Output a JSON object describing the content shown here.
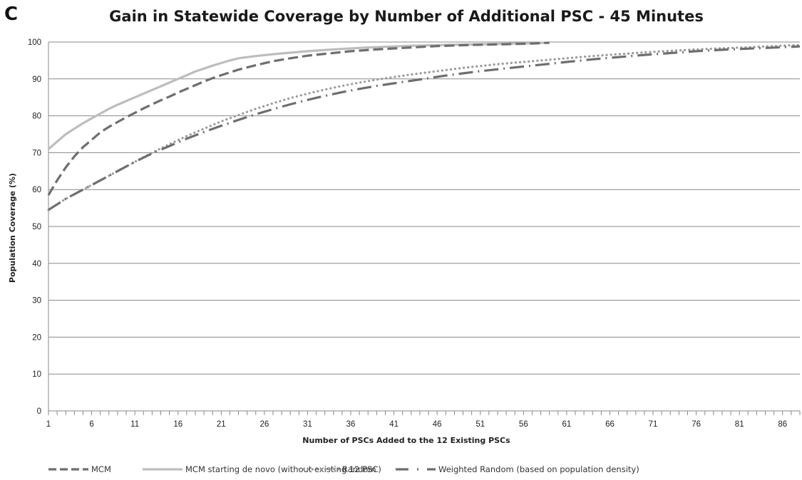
{
  "panel_label": "C",
  "chart_data": {
    "type": "line",
    "title": "Gain in Statewide Coverage by Number of Additional PSC - 45 Minutes",
    "xlabel": "Number of PSCs Added to the 12 Existing PSCs",
    "ylabel": "Population Coverage (%)",
    "xlim": [
      1,
      88
    ],
    "ylim": [
      0,
      100
    ],
    "x_ticks": [
      1,
      6,
      11,
      16,
      21,
      26,
      31,
      36,
      41,
      46,
      51,
      56,
      61,
      66,
      71,
      76,
      81,
      86
    ],
    "y_ticks": [
      0,
      10,
      20,
      30,
      40,
      50,
      60,
      70,
      80,
      90,
      100
    ],
    "grid": "horizontal",
    "legend_position": "bottom",
    "series": [
      {
        "name": "MCM",
        "color": "#6e6e6e",
        "style": "dashed",
        "points": [
          [
            1,
            58.5
          ],
          [
            2,
            62.5
          ],
          [
            3,
            66
          ],
          [
            4,
            69
          ],
          [
            5,
            71.5
          ],
          [
            6,
            73.5
          ],
          [
            7,
            75.5
          ],
          [
            8,
            77
          ],
          [
            9,
            78.3
          ],
          [
            10,
            79.6
          ],
          [
            11,
            80.8
          ],
          [
            12,
            82
          ],
          [
            13,
            83.1
          ],
          [
            14,
            84.2
          ],
          [
            15,
            85.2
          ],
          [
            16,
            86.3
          ],
          [
            17,
            87.3
          ],
          [
            18,
            88.3
          ],
          [
            19,
            89.3
          ],
          [
            20,
            90.2
          ],
          [
            21,
            91
          ],
          [
            23,
            92.5
          ],
          [
            25,
            93.7
          ],
          [
            27,
            94.8
          ],
          [
            29,
            95.6
          ],
          [
            31,
            96.3
          ],
          [
            33,
            96.8
          ],
          [
            36,
            97.5
          ],
          [
            39,
            98
          ],
          [
            42,
            98.4
          ],
          [
            46,
            98.9
          ],
          [
            50,
            99.2
          ],
          [
            54,
            99.4
          ],
          [
            57,
            99.6
          ],
          [
            59,
            99.8
          ]
        ]
      },
      {
        "name": "MCM starting de novo (without existing 12 PSC)",
        "color": "#bdbdbd",
        "style": "solid",
        "points": [
          [
            1,
            71
          ],
          [
            2,
            73
          ],
          [
            3,
            75
          ],
          [
            4,
            76.5
          ],
          [
            5,
            78
          ],
          [
            6,
            79.3
          ],
          [
            7,
            80.6
          ],
          [
            8,
            81.9
          ],
          [
            9,
            83
          ],
          [
            10,
            84
          ],
          [
            11,
            85
          ],
          [
            12,
            86
          ],
          [
            13,
            87
          ],
          [
            14,
            88
          ],
          [
            15,
            89
          ],
          [
            16,
            90
          ],
          [
            17,
            91
          ],
          [
            18,
            92
          ],
          [
            19,
            92.8
          ],
          [
            20,
            93.6
          ],
          [
            21,
            94.3
          ],
          [
            22,
            95
          ],
          [
            23,
            95.6
          ],
          [
            25,
            96.2
          ],
          [
            27,
            96.7
          ],
          [
            29,
            97.1
          ],
          [
            31,
            97.5
          ],
          [
            34,
            98
          ],
          [
            37,
            98.4
          ],
          [
            40,
            98.7
          ],
          [
            43,
            99
          ],
          [
            47,
            99.2
          ],
          [
            51,
            99.4
          ],
          [
            55,
            99.6
          ],
          [
            59,
            99.8
          ]
        ]
      },
      {
        "name": "Random",
        "color": "#9a9a9a",
        "style": "dotted",
        "points": [
          [
            1,
            54.5
          ],
          [
            3,
            57.5
          ],
          [
            5,
            60
          ],
          [
            7,
            62.5
          ],
          [
            9,
            65
          ],
          [
            11,
            67.5
          ],
          [
            13,
            70
          ],
          [
            15,
            72.3
          ],
          [
            17,
            74.5
          ],
          [
            19,
            76.5
          ],
          [
            21,
            78.5
          ],
          [
            23,
            80.2
          ],
          [
            25,
            81.9
          ],
          [
            27,
            83.4
          ],
          [
            29,
            84.8
          ],
          [
            31,
            86
          ],
          [
            33,
            87.1
          ],
          [
            35,
            88.1
          ],
          [
            37,
            89
          ],
          [
            39,
            89.8
          ],
          [
            41,
            90.5
          ],
          [
            43,
            91.2
          ],
          [
            45,
            91.8
          ],
          [
            47,
            92.4
          ],
          [
            49,
            93
          ],
          [
            51,
            93.5
          ],
          [
            53,
            94
          ],
          [
            55,
            94.4
          ],
          [
            57,
            94.8
          ],
          [
            59,
            95.2
          ],
          [
            61,
            95.6
          ],
          [
            64,
            96.2
          ],
          [
            67,
            96.7
          ],
          [
            70,
            97.2
          ],
          [
            73,
            97.6
          ],
          [
            76,
            98
          ],
          [
            79,
            98.3
          ],
          [
            82,
            98.6
          ],
          [
            85,
            98.9
          ],
          [
            88,
            99.2
          ]
        ]
      },
      {
        "name": "Weighted Random (based on population density)",
        "color": "#6e6e6e",
        "style": "dashdot",
        "points": [
          [
            1,
            54.5
          ],
          [
            3,
            57.5
          ],
          [
            5,
            60
          ],
          [
            7,
            62.5
          ],
          [
            9,
            65
          ],
          [
            11,
            67.5
          ],
          [
            13,
            69.8
          ],
          [
            15,
            71.8
          ],
          [
            17,
            73.8
          ],
          [
            19,
            75.6
          ],
          [
            21,
            77.3
          ],
          [
            23,
            78.9
          ],
          [
            25,
            80.4
          ],
          [
            27,
            81.8
          ],
          [
            29,
            83.1
          ],
          [
            31,
            84.3
          ],
          [
            33,
            85.4
          ],
          [
            35,
            86.4
          ],
          [
            37,
            87.3
          ],
          [
            39,
            88.1
          ],
          [
            41,
            88.8
          ],
          [
            43,
            89.5
          ],
          [
            45,
            90.2
          ],
          [
            47,
            90.9
          ],
          [
            49,
            91.5
          ],
          [
            51,
            92.1
          ],
          [
            53,
            92.6
          ],
          [
            55,
            93.1
          ],
          [
            57,
            93.6
          ],
          [
            59,
            94.1
          ],
          [
            61,
            94.6
          ],
          [
            64,
            95.3
          ],
          [
            67,
            95.9
          ],
          [
            70,
            96.5
          ],
          [
            73,
            97
          ],
          [
            76,
            97.5
          ],
          [
            79,
            97.9
          ],
          [
            82,
            98.2
          ],
          [
            85,
            98.5
          ],
          [
            88,
            98.8
          ]
        ]
      }
    ]
  }
}
